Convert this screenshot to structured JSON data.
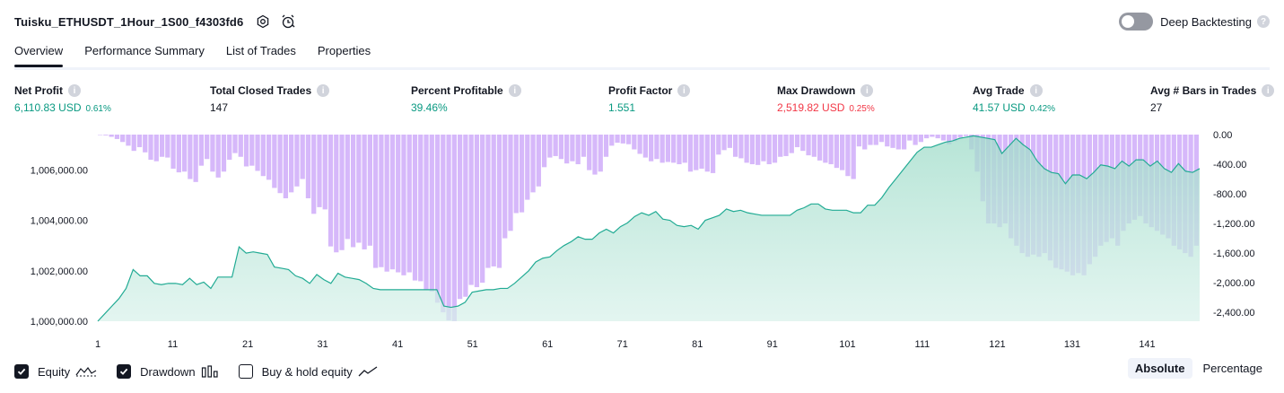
{
  "strategy": {
    "name": "Tuisku_ETHUSDT_1Hour_1S00_f4303fd6"
  },
  "deep_backtesting": {
    "label": "Deep Backtesting",
    "enabled": false,
    "help": "?"
  },
  "tabs": [
    {
      "label": "Overview",
      "active": true
    },
    {
      "label": "Performance Summary",
      "active": false
    },
    {
      "label": "List of Trades",
      "active": false
    },
    {
      "label": "Properties",
      "active": false
    }
  ],
  "info_glyph": "i",
  "metrics": {
    "net_profit": {
      "label": "Net Profit",
      "value": "6,110.83 USD",
      "pct": "0.61%"
    },
    "total_closed_trades": {
      "label": "Total Closed Trades",
      "value": "147"
    },
    "percent_profitable": {
      "label": "Percent Profitable",
      "value": "39.46%"
    },
    "profit_factor": {
      "label": "Profit Factor",
      "value": "1.551"
    },
    "max_drawdown": {
      "label": "Max Drawdown",
      "value": "2,519.82 USD",
      "pct": "0.25%"
    },
    "avg_trade": {
      "label": "Avg Trade",
      "value": "41.57 USD",
      "pct": "0.42%"
    },
    "avg_bars": {
      "label": "Avg # Bars in Trades",
      "value": "27"
    }
  },
  "colors": {
    "profit": "#089981",
    "loss": "#f23645",
    "equity_line": "#22ab94",
    "equity_fill": "#d7f1ea",
    "drawdown_bar": "#d6b8fa",
    "drawdown_overlap": "#acacdc"
  },
  "chart_data": {
    "type": "combo",
    "x_ticks": [
      "1",
      "11",
      "21",
      "31",
      "41",
      "51",
      "61",
      "71",
      "81",
      "91",
      "101",
      "111",
      "121",
      "131",
      "141"
    ],
    "x_range": [
      1,
      148
    ],
    "left_axis": {
      "ticks": [
        "1,000,000.00",
        "1,002,000.00",
        "1,004,000.00",
        "1,006,000.00"
      ],
      "range": [
        1000000,
        1007400
      ]
    },
    "right_axis": {
      "ticks": [
        "0.00",
        "-400.00",
        "-800.00",
        "-1,200.00",
        "-1,600.00",
        "-2,000.00",
        "-2,400.00"
      ],
      "range": [
        -2520,
        0
      ]
    },
    "series": [
      {
        "name": "Equity",
        "type": "area",
        "values": [
          1000000,
          1000300,
          1000600,
          1000900,
          1001300,
          1002050,
          1001800,
          1001800,
          1001500,
          1001450,
          1001500,
          1001500,
          1001450,
          1001700,
          1001450,
          1001550,
          1001300,
          1001750,
          1001750,
          1001750,
          1002950,
          1002700,
          1002750,
          1002700,
          1002650,
          1002150,
          1002100,
          1002050,
          1001800,
          1001700,
          1001500,
          1001850,
          1001650,
          1001500,
          1001900,
          1001750,
          1001700,
          1001650,
          1001500,
          1001300,
          1001250,
          1001250,
          1001250,
          1001250,
          1001250,
          1001250,
          1001250,
          1001250,
          1001250,
          1000600,
          1000550,
          1000600,
          1000750,
          1001150,
          1001200,
          1001250,
          1001250,
          1001300,
          1001300,
          1001500,
          1001750,
          1002000,
          1002350,
          1002500,
          1002550,
          1002800,
          1003000,
          1003150,
          1003350,
          1003250,
          1003250,
          1003500,
          1003650,
          1003500,
          1003750,
          1003900,
          1004150,
          1004300,
          1004200,
          1004350,
          1004050,
          1004000,
          1003800,
          1003750,
          1003800,
          1003650,
          1004000,
          1004100,
          1004200,
          1004450,
          1004350,
          1004400,
          1004300,
          1004250,
          1004200,
          1004200,
          1004200,
          1004200,
          1004200,
          1004400,
          1004500,
          1004650,
          1004650,
          1004450,
          1004400,
          1004400,
          1004400,
          1004300,
          1004300,
          1004600,
          1004600,
          1004900,
          1005300,
          1005650,
          1006000,
          1006350,
          1006700,
          1006900,
          1006900,
          1007000,
          1007100,
          1007150,
          1007250,
          1007300,
          1007350,
          1007300,
          1007250,
          1007200,
          1006650,
          1006950,
          1007250,
          1007000,
          1006800,
          1006350,
          1006050,
          1005900,
          1005850,
          1005450,
          1005800,
          1005800,
          1005650,
          1005900,
          1006200,
          1006150,
          1006050,
          1006350,
          1006150,
          1006400,
          1006400,
          1006150,
          1006350,
          1006050,
          1005900,
          1006250,
          1005950,
          1005900,
          1006050
        ]
      },
      {
        "name": "Drawdown",
        "type": "bar",
        "values": [
          0,
          -10,
          -30,
          -60,
          -100,
          -150,
          -220,
          -170,
          -240,
          -340,
          -360,
          -300,
          -310,
          -460,
          -510,
          -500,
          -600,
          -640,
          -420,
          -330,
          -500,
          -580,
          -500,
          -340,
          -250,
          -300,
          -430,
          -420,
          -490,
          -560,
          -610,
          -720,
          -790,
          -860,
          -780,
          -700,
          -600,
          -860,
          -1070,
          -980,
          -1010,
          -1510,
          -1590,
          -1560,
          -1410,
          -1520,
          -1460,
          -1550,
          -1500,
          -1800,
          -1790,
          -1850,
          -1820,
          -1860,
          -1900,
          -1860,
          -1970,
          -1980,
          -2090,
          -2120,
          -2270,
          -2400,
          -2510,
          -2520,
          -2220,
          -2190,
          -2030,
          -2060,
          -2000,
          -1800,
          -1780,
          -1800,
          -1400,
          -1300,
          -1060,
          -1050,
          -880,
          -780,
          -700,
          -440,
          -310,
          -290,
          -330,
          -390,
          -360,
          -400,
          -300,
          -480,
          -540,
          -500,
          -300,
          -150,
          -110,
          -120,
          -130,
          -200,
          -260,
          -310,
          -360,
          -330,
          -380,
          -370,
          -380,
          -400,
          -380,
          -500,
          -480,
          -460,
          -500,
          -520,
          -270,
          -210,
          -180,
          -300,
          -320,
          -380,
          -400,
          -410,
          -360,
          -400,
          -380,
          -300,
          -290,
          -250,
          -170,
          -220,
          -280,
          -300,
          -350,
          -380,
          -400,
          -450,
          -480,
          -560,
          -600,
          -160,
          -200,
          -140,
          -140,
          -100,
          -160,
          -180,
          -200,
          -200,
          -80,
          -140,
          -100,
          -50,
          -30,
          -50,
          -80,
          -130,
          -90,
          -40,
          -20,
          -200,
          -500,
          -900,
          -1200,
          -1200,
          -1250,
          -1200,
          -1400,
          -1500,
          -1600,
          -1650,
          -1620,
          -1650,
          -1600,
          -1700,
          -1800,
          -1820,
          -1850,
          -1900,
          -1870,
          -1900,
          -1750,
          -1650,
          -1500,
          -1450,
          -1400,
          -1500,
          -1300,
          -1200,
          -1150,
          -1100,
          -1200,
          -1250,
          -1300,
          -1350,
          -1400,
          -1500,
          -1550,
          -1600,
          -1650,
          -1500
        ]
      },
      {
        "name": "Buy & hold equity",
        "type": "line",
        "visible": false
      }
    ]
  },
  "legend": {
    "equity": "Equity",
    "drawdown": "Drawdown",
    "buy_hold": "Buy & hold equity"
  },
  "view_modes": {
    "absolute": "Absolute",
    "percentage": "Percentage",
    "active": "absolute"
  }
}
